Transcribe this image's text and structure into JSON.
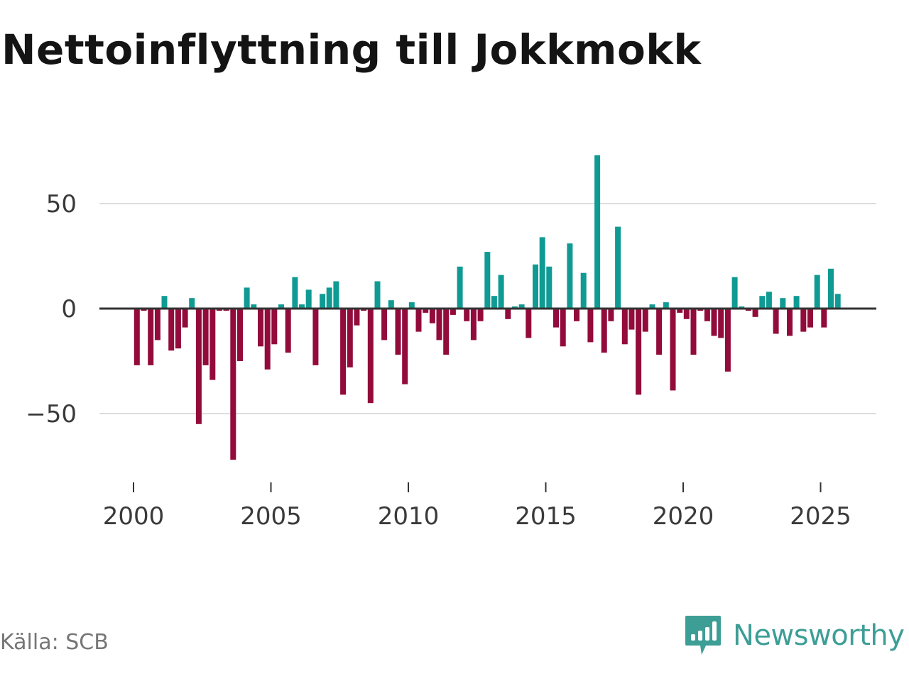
{
  "title": "Nettoinflyttning till Jokkmokk",
  "source": "Källa: SCB",
  "brand": "Newsworthy",
  "colors": {
    "positive": "#0f9b93",
    "negative": "#920b3b",
    "brand": "#3d9e96",
    "gridline": "#dddddd",
    "zeroline": "#333333"
  },
  "chart_data": {
    "type": "bar",
    "title": "Nettoinflyttning till Jokkmokk",
    "xlabel": "",
    "ylabel": "",
    "frequency": "quarterly",
    "xlim": [
      1999.5,
      2026.5
    ],
    "ylim": [
      -80,
      80
    ],
    "yticks": [
      50,
      0,
      -50
    ],
    "ytick_labels": [
      "50",
      "0",
      "−50"
    ],
    "xticks": [
      2000,
      2005,
      2010,
      2015,
      2020,
      2025
    ],
    "xtick_labels": [
      "2000",
      "2005",
      "2010",
      "2015",
      "2020",
      "2025"
    ],
    "grid": true,
    "legend": "none",
    "series": [
      {
        "name": "Nettoinflyttning",
        "x": [
          2000.125,
          2000.375,
          2000.625,
          2000.875,
          2001.125,
          2001.375,
          2001.625,
          2001.875,
          2002.125,
          2002.375,
          2002.625,
          2002.875,
          2003.125,
          2003.375,
          2003.625,
          2003.875,
          2004.125,
          2004.375,
          2004.625,
          2004.875,
          2005.125,
          2005.375,
          2005.625,
          2005.875,
          2006.125,
          2006.375,
          2006.625,
          2006.875,
          2007.125,
          2007.375,
          2007.625,
          2007.875,
          2008.125,
          2008.375,
          2008.625,
          2008.875,
          2009.125,
          2009.375,
          2009.625,
          2009.875,
          2010.125,
          2010.375,
          2010.625,
          2010.875,
          2011.125,
          2011.375,
          2011.625,
          2011.875,
          2012.125,
          2012.375,
          2012.625,
          2012.875,
          2013.125,
          2013.375,
          2013.625,
          2013.875,
          2014.125,
          2014.375,
          2014.625,
          2014.875,
          2015.125,
          2015.375,
          2015.625,
          2015.875,
          2016.125,
          2016.375,
          2016.625,
          2016.875,
          2017.125,
          2017.375,
          2017.625,
          2017.875,
          2018.125,
          2018.375,
          2018.625,
          2018.875,
          2019.125,
          2019.375,
          2019.625,
          2019.875,
          2020.125,
          2020.375,
          2020.625,
          2020.875,
          2021.125,
          2021.375,
          2021.625,
          2021.875,
          2022.125,
          2022.375,
          2022.625,
          2022.875,
          2023.125,
          2023.375,
          2023.625,
          2023.875,
          2024.125,
          2024.375,
          2024.625,
          2024.875,
          2025.125,
          2025.375,
          2025.625
        ],
        "values": [
          -27,
          -1,
          -27,
          -15,
          6,
          -20,
          -19,
          -9,
          5,
          -55,
          -27,
          -34,
          -1,
          -1,
          -72,
          -25,
          10,
          2,
          -18,
          -29,
          -17,
          2,
          -21,
          15,
          2,
          9,
          -27,
          7,
          10,
          13,
          -41,
          -28,
          -8,
          -1,
          -45,
          13,
          -15,
          4,
          -22,
          -36,
          3,
          -11,
          -2,
          -7,
          -15,
          -22,
          -3,
          20,
          -6,
          -15,
          -6,
          27,
          6,
          16,
          -5,
          1,
          2,
          -14,
          21,
          34,
          20,
          -9,
          -18,
          31,
          -6,
          17,
          -16,
          73,
          -21,
          -6,
          39,
          -17,
          -10,
          -41,
          -11,
          2,
          -22,
          3,
          -39,
          -2,
          -5,
          -22,
          -1,
          -6,
          -13,
          -14,
          -30,
          15,
          1,
          -1,
          -4,
          6,
          8,
          -12,
          5,
          -13,
          6,
          -11,
          -9,
          16,
          -9,
          19,
          7
        ]
      }
    ]
  }
}
